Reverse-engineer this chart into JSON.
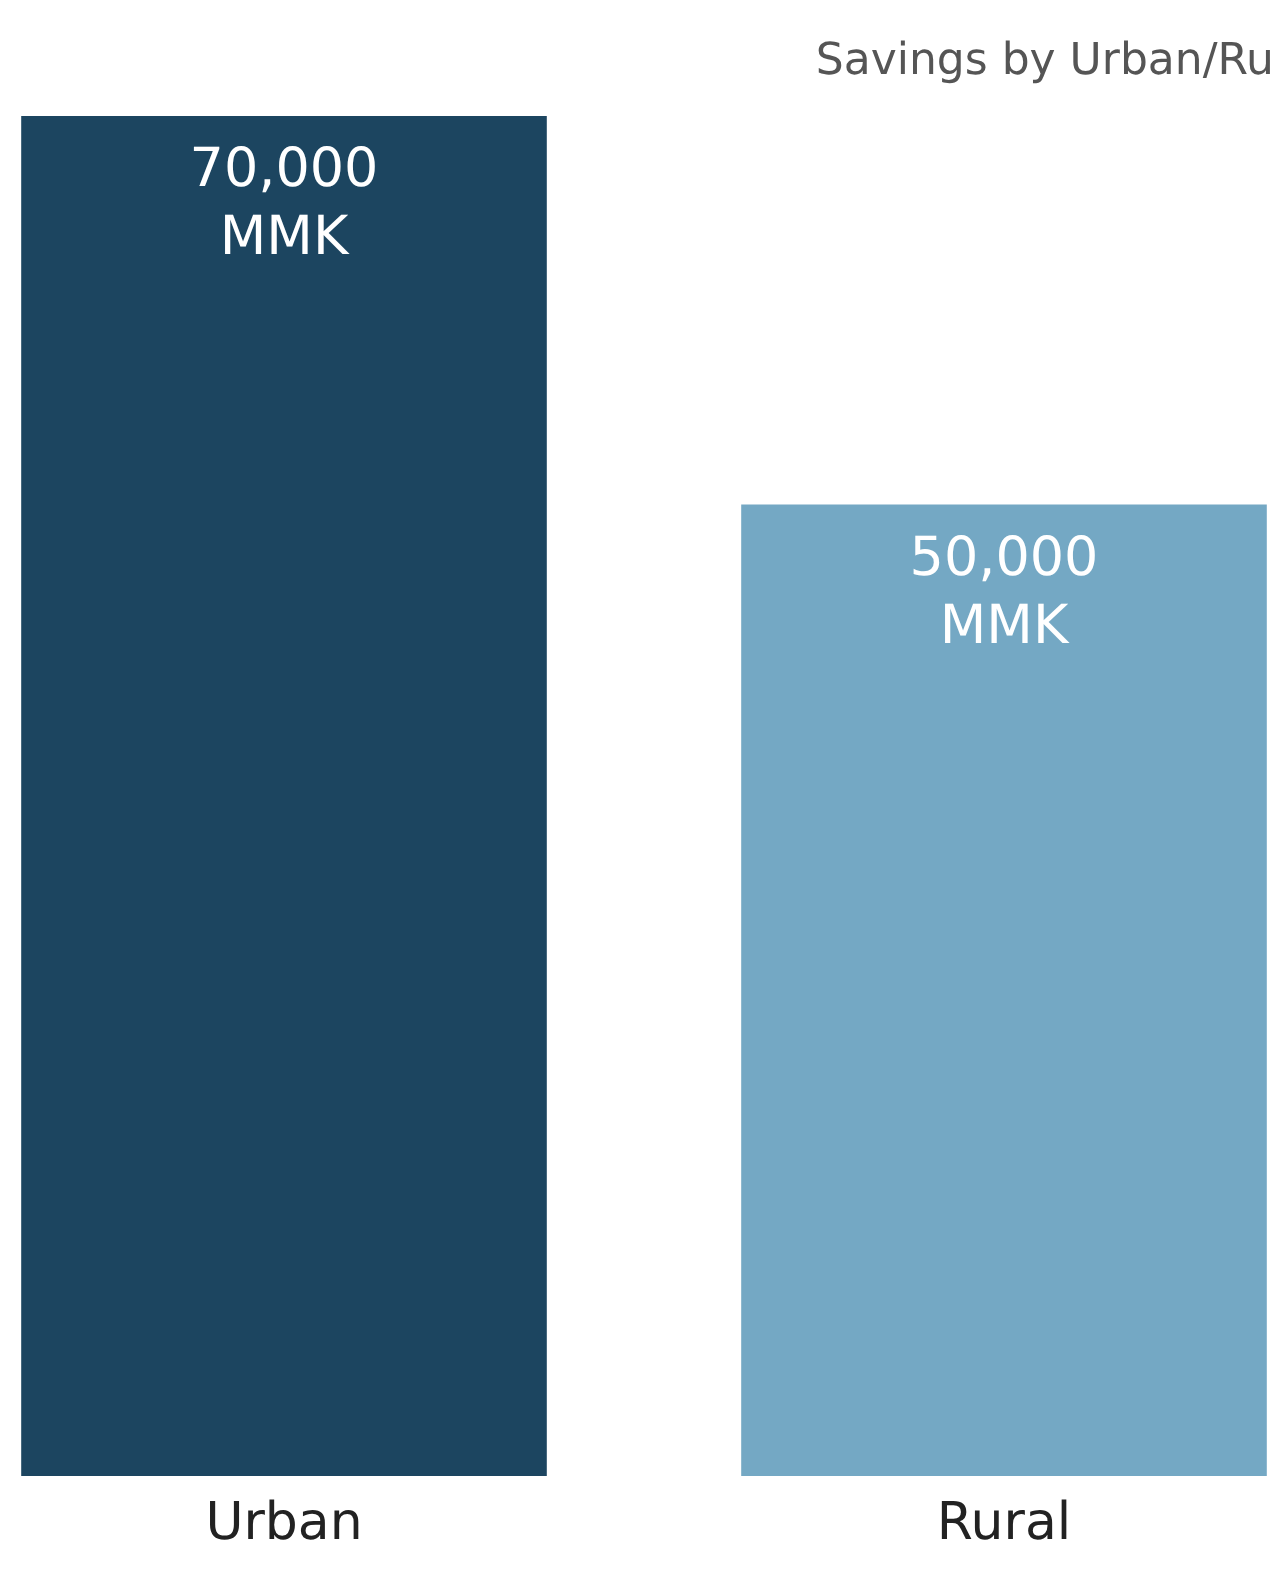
{
  "chart_data": {
    "type": "bar",
    "title": "Savings by Urban/Ru",
    "categories": [
      "Urban",
      "Rural"
    ],
    "values": [
      70000,
      50000
    ],
    "colors": [
      "#1c4560",
      "#74a8c4"
    ],
    "value_labels": [
      "70,000 MMK",
      "50,000 MMK"
    ],
    "ylim": [
      0,
      70000
    ],
    "tick_labels": "x",
    "grid": false,
    "legend": false
  }
}
